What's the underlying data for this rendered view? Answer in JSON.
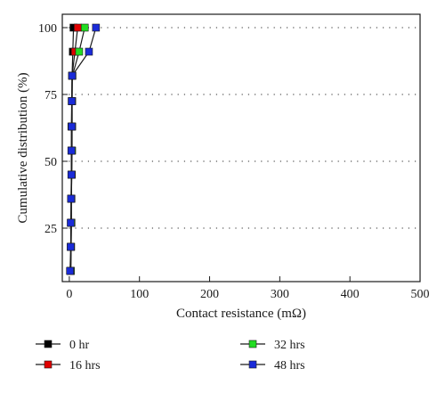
{
  "chart_data": {
    "type": "line",
    "xlabel": "Contact resistance (mΩ)",
    "ylabel": "Cumulative distribution (%)",
    "xlim": [
      -10,
      500
    ],
    "ylim": [
      5,
      105
    ],
    "xticks": [
      0,
      100,
      200,
      300,
      400,
      500
    ],
    "yticks": [
      25,
      50,
      75,
      100
    ],
    "grid": "horizontal dotted",
    "legend_placement": "bottom",
    "y": [
      9,
      18,
      27,
      36,
      45,
      54,
      63,
      72.5,
      82,
      91,
      100
    ],
    "series": [
      {
        "name": "0 hr",
        "color": "#000000",
        "x": [
          2,
          2,
          2.5,
          2.5,
          3,
          3,
          3,
          3.5,
          4,
          5,
          6
        ]
      },
      {
        "name": "16 hrs",
        "color": "#e00000",
        "x": [
          2,
          2.5,
          3,
          3,
          3.5,
          3.5,
          4,
          4,
          4,
          8,
          12
        ]
      },
      {
        "name": "32 hrs",
        "color": "#22dd22",
        "x": [
          2,
          2.5,
          3,
          3,
          3.5,
          4,
          4,
          4,
          4.5,
          14,
          22
        ]
      },
      {
        "name": "48 hrs",
        "color": "#1a2bd8",
        "x": [
          1,
          2,
          2,
          2.5,
          3,
          3,
          3.5,
          3.5,
          4,
          28,
          38
        ]
      }
    ]
  }
}
